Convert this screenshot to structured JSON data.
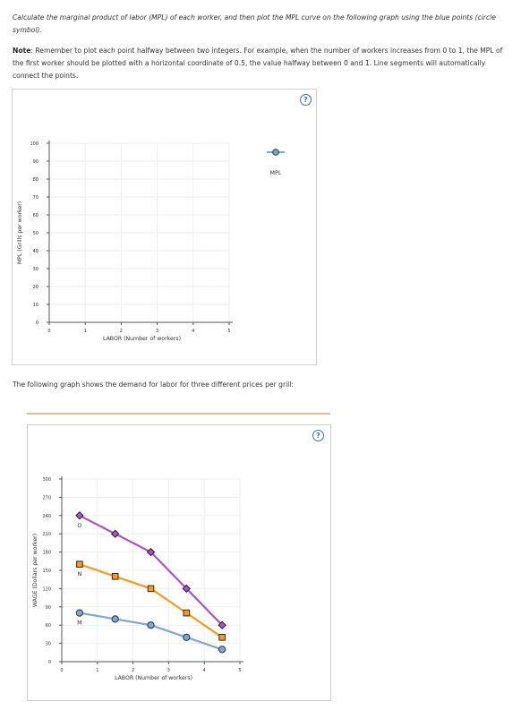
{
  "instructions": {
    "line1": "Calculate the marginal product of labor (MPL) of each worker, and then plot the MPL curve on the following graph using the blue points (circle symbol).",
    "note_label": "Note",
    "note_text": ": Remember to plot each point halfway between two integers. For example, when the number of workers increases from 0 to 1, the MPL of the first worker should be plotted with a horizontal coordinate of 0.5, the value halfway between 0 and 1. Line segments will automatically connect the points."
  },
  "graph1": {
    "help_icon": "question-circle-icon",
    "help_label": "?",
    "ylabel": "MPL (Grills per worker)",
    "xlabel": "LABOR (Number of workers)",
    "yticks": [
      "0",
      "10",
      "20",
      "30",
      "40",
      "50",
      "60",
      "70",
      "80",
      "90",
      "100"
    ],
    "xticks": [
      "0",
      "1",
      "2",
      "3",
      "4",
      "5"
    ],
    "legend_label": "MPL",
    "legend_color": "#7ea7d1"
  },
  "middle_text": "The following graph shows the demand for labor for three different prices per grill:",
  "graph2": {
    "help_icon": "question-circle-icon",
    "help_label": "?"
  },
  "chart_data": {
    "type": "line",
    "xlabel": "LABOR (Number of workers)",
    "ylabel": "WAGE (Dollars per worker)",
    "xlim": [
      0,
      5
    ],
    "ylim": [
      0,
      300
    ],
    "xticks": [
      "0",
      "1",
      "2",
      "3",
      "4",
      "5"
    ],
    "yticks": [
      "0",
      "30",
      "60",
      "90",
      "120",
      "150",
      "180",
      "210",
      "240",
      "270",
      "300"
    ],
    "x": [
      0.5,
      1.5,
      2.5,
      3.5,
      4.5
    ],
    "series": [
      {
        "name": "O",
        "marker": "diamond",
        "color": "#a855c8",
        "values": [
          240,
          210,
          180,
          120,
          60
        ]
      },
      {
        "name": "N",
        "marker": "square",
        "color": "#f59a23",
        "values": [
          160,
          140,
          120,
          80,
          40
        ]
      },
      {
        "name": "M",
        "marker": "circle",
        "color": "#7ea7d1",
        "values": [
          80,
          70,
          60,
          40,
          20
        ]
      }
    ]
  }
}
